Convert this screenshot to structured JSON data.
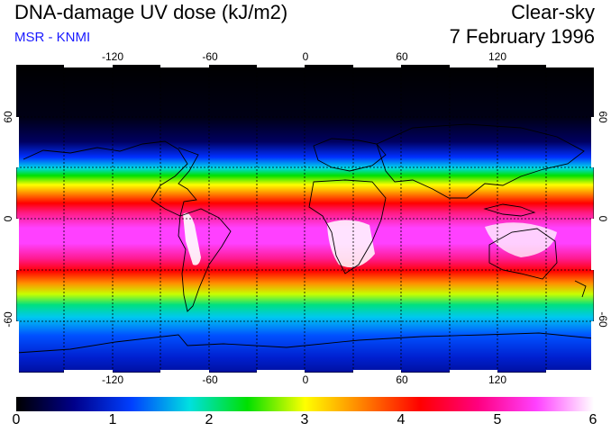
{
  "header": {
    "title": "DNA-damage UV dose (kJ/m2)",
    "subtitle": "MSR - KNMI",
    "mode": "Clear-sky",
    "date": "7 February 1996"
  },
  "map": {
    "longitude_labels": [
      "-120",
      "-60",
      "0",
      "60",
      "120"
    ],
    "latitude_labels_left": [
      "60",
      "0",
      "-60"
    ],
    "latitude_labels_right": [
      "60",
      "0",
      "-60"
    ]
  },
  "colorbar": {
    "labels": [
      "0",
      "1",
      "2",
      "3",
      "4",
      "5",
      "6"
    ],
    "colors": [
      "#000000",
      "#00008a",
      "#0040ff",
      "#00e0e0",
      "#00e000",
      "#ffff00",
      "#ff8000",
      "#ff0000",
      "#ff0080",
      "#ff40ff",
      "#ffffff"
    ]
  },
  "colors": {
    "title": "#000000",
    "subtitle": "#1a1aff",
    "coastline": "#000000",
    "grid": "#000000"
  }
}
